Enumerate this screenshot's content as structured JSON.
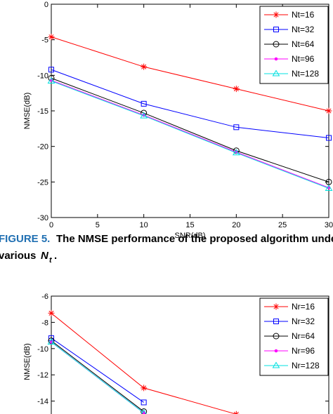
{
  "chart_data": [
    {
      "type": "line",
      "xlabel": "SNR(dB)",
      "ylabel": "NMSE(dB)",
      "x": [
        0,
        10,
        20,
        30
      ],
      "xlim": [
        0,
        30
      ],
      "xticks": [
        0,
        5,
        10,
        15,
        20,
        25,
        30
      ],
      "ylim": [
        -30,
        0
      ],
      "yticks": [
        -30,
        -25,
        -20,
        -15,
        -10,
        -5,
        0
      ],
      "legend": "upper-right",
      "series": [
        {
          "name": "Nt=16",
          "color": "#ff0000",
          "marker": "star",
          "values": [
            -4.6,
            -8.8,
            -11.9,
            -15.0
          ]
        },
        {
          "name": "Nt=32",
          "color": "#0000ff",
          "marker": "square",
          "values": [
            -9.2,
            -14.0,
            -17.3,
            -18.8
          ]
        },
        {
          "name": "Nt=64",
          "color": "#000000",
          "marker": "circle",
          "values": [
            -10.4,
            -15.3,
            -20.6,
            -25.0
          ]
        },
        {
          "name": "Nt=96",
          "color": "#ff00ff",
          "marker": "dot",
          "values": [
            -10.7,
            -15.6,
            -20.8,
            -25.8
          ]
        },
        {
          "name": "Nt=128",
          "color": "#00e0e0",
          "marker": "triangle",
          "values": [
            -10.8,
            -15.7,
            -20.9,
            -25.9
          ]
        }
      ]
    },
    {
      "type": "line",
      "ylabel": "NMSE(dB)",
      "x": [
        0,
        10,
        20
      ],
      "xlim": [
        0,
        30
      ],
      "ylim": [
        -16,
        -6
      ],
      "yticks": [
        -14,
        -12,
        -10,
        -8,
        -6
      ],
      "legend": "upper-right",
      "series": [
        {
          "name": "Nr=16",
          "color": "#ff0000",
          "marker": "star",
          "values": [
            -7.3,
            -13.0,
            -15.0
          ]
        },
        {
          "name": "Nr=32",
          "color": "#0000ff",
          "marker": "square",
          "values": [
            -9.2,
            -14.1,
            null
          ]
        },
        {
          "name": "Nr=64",
          "color": "#000000",
          "marker": "circle",
          "values": [
            -9.4,
            -14.8,
            null
          ]
        },
        {
          "name": "Nr=96",
          "color": "#ff00ff",
          "marker": "dot",
          "values": [
            -9.5,
            -14.9,
            null
          ]
        },
        {
          "name": "Nr=128",
          "color": "#00e0e0",
          "marker": "triangle",
          "values": [
            -9.5,
            -14.9,
            null
          ]
        }
      ]
    }
  ],
  "caption": {
    "label": "FIGURE 5.",
    "line_1": "The NMSE performance of the proposed algorithm under",
    "line_2": "various",
    "symbol": "N",
    "subscript": "t",
    "end": "."
  }
}
